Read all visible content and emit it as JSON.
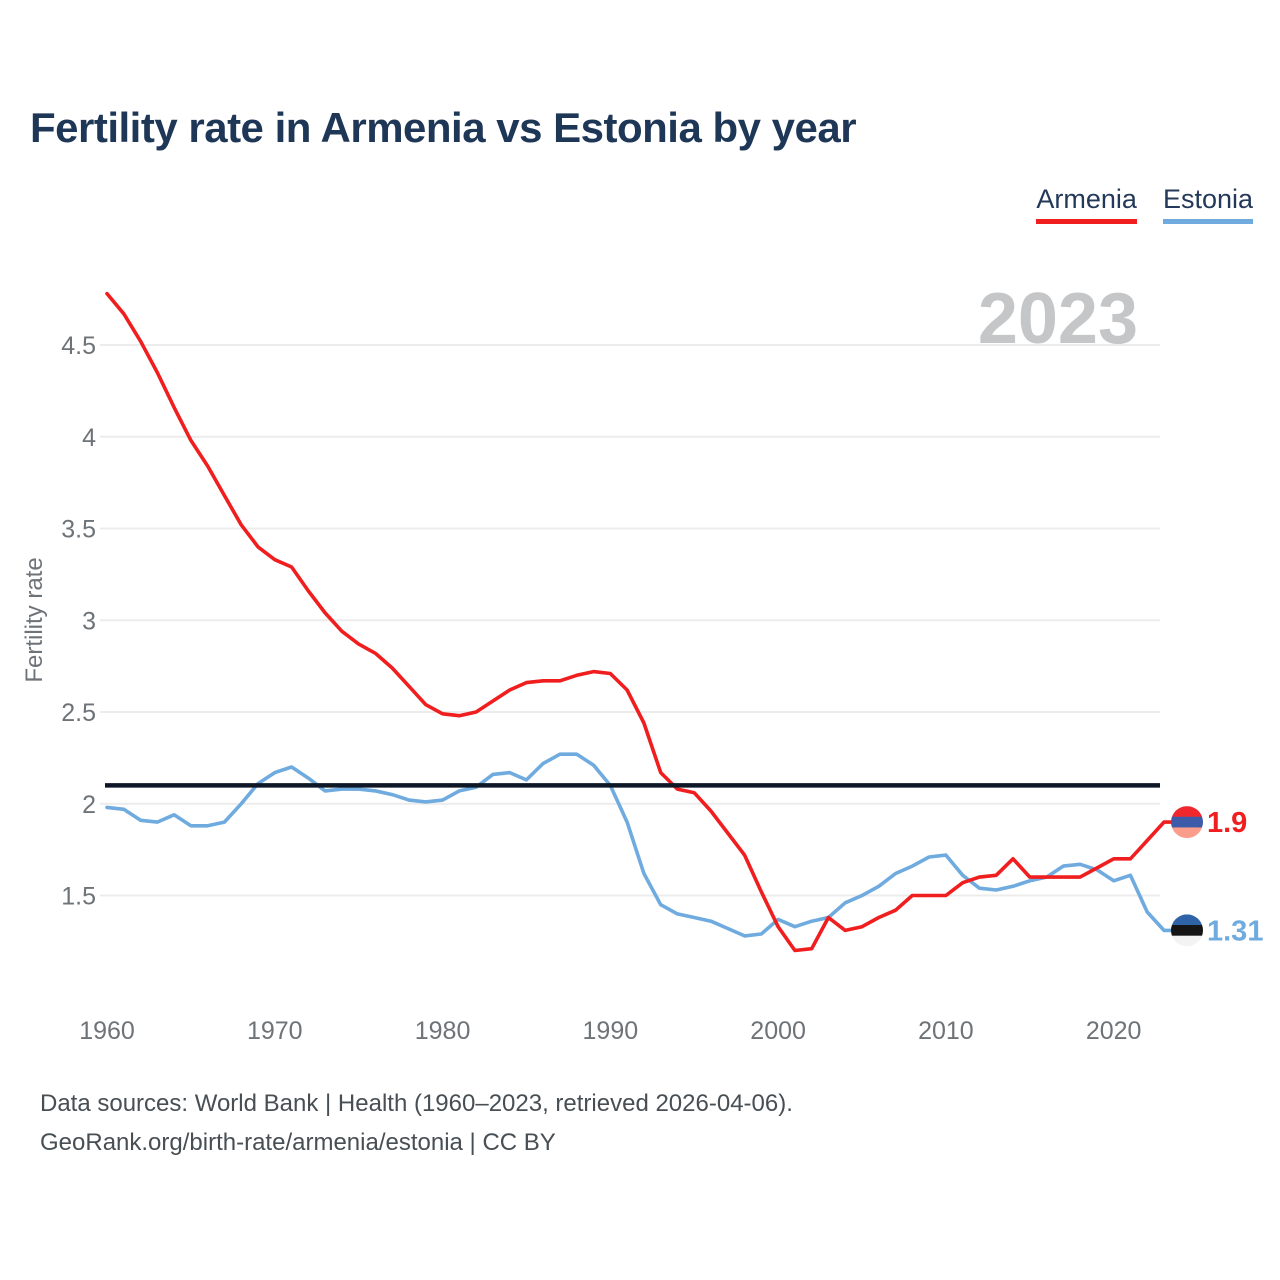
{
  "header": {
    "title": "Fertility rate in Armenia vs Estonia by year"
  },
  "legend": {
    "items": [
      {
        "id": "armenia",
        "label": "Armenia",
        "color": "#f01e1e"
      },
      {
        "id": "estonia",
        "label": "Estonia",
        "color": "#6fabdf"
      }
    ]
  },
  "watermark": "2023",
  "footer": {
    "line1": "Data sources: World Bank | Health (1960–2023, retrieved 2026-04-06).",
    "line2": "GeoRank.org/birth-rate/armenia/estonia | CC BY"
  },
  "chart_data": {
    "type": "line",
    "title": "Fertility rate in Armenia vs Estonia by year",
    "xlabel": "",
    "ylabel": "Fertility rate",
    "x": [
      1960,
      1961,
      1962,
      1963,
      1964,
      1965,
      1966,
      1967,
      1968,
      1969,
      1970,
      1971,
      1972,
      1973,
      1974,
      1975,
      1976,
      1977,
      1978,
      1979,
      1980,
      1981,
      1982,
      1983,
      1984,
      1985,
      1986,
      1987,
      1988,
      1989,
      1990,
      1991,
      1992,
      1993,
      1994,
      1995,
      1996,
      1997,
      1998,
      1999,
      2000,
      2001,
      2002,
      2003,
      2004,
      2005,
      2006,
      2007,
      2008,
      2009,
      2010,
      2011,
      2012,
      2013,
      2014,
      2015,
      2016,
      2017,
      2018,
      2019,
      2020,
      2021,
      2022,
      2023
    ],
    "x_ticks": [
      1960,
      1970,
      1980,
      1990,
      2000,
      2010,
      2020
    ],
    "y_ticks": [
      4.5,
      4,
      3.5,
      3,
      2.5,
      2,
      1.5
    ],
    "y_tick_labels": [
      "4.5",
      "4",
      "3.5",
      "3",
      "2.5",
      "2",
      "1.5"
    ],
    "ylim": [
      0.95,
      4.85
    ],
    "xlim": [
      1960,
      2023
    ],
    "grid": true,
    "legend_position": "top-right",
    "reference_line": {
      "value": 2.1,
      "color": "#0e1726"
    },
    "series": [
      {
        "name": "Armenia",
        "color": "#f01e1e",
        "end_label": "1.9",
        "end_value": 1.9,
        "flag_icon": "armenia-flag-icon",
        "flag_colors": [
          "#f0282d",
          "#3d5ba9",
          "#fb9d8a"
        ],
        "values": [
          4.78,
          4.67,
          4.52,
          4.35,
          4.16,
          3.98,
          3.84,
          3.68,
          3.52,
          3.4,
          3.33,
          3.29,
          3.16,
          3.04,
          2.94,
          2.87,
          2.82,
          2.74,
          2.64,
          2.54,
          2.49,
          2.48,
          2.5,
          2.56,
          2.62,
          2.66,
          2.67,
          2.67,
          2.7,
          2.72,
          2.71,
          2.62,
          2.44,
          2.17,
          2.08,
          2.06,
          1.96,
          1.84,
          1.72,
          1.52,
          1.33,
          1.2,
          1.21,
          1.38,
          1.31,
          1.33,
          1.38,
          1.42,
          1.5,
          1.5,
          1.5,
          1.57,
          1.6,
          1.61,
          1.7,
          1.6,
          1.6,
          1.6,
          1.6,
          1.65,
          1.7,
          1.7,
          1.8,
          1.9
        ]
      },
      {
        "name": "Estonia",
        "color": "#6fabdf",
        "end_label": "1.31",
        "end_value": 1.31,
        "flag_icon": "estonia-flag-icon",
        "flag_colors": [
          "#2f63a7",
          "#151515",
          "#f3f3f3"
        ],
        "values": [
          1.98,
          1.97,
          1.91,
          1.9,
          1.94,
          1.88,
          1.88,
          1.9,
          2.0,
          2.11,
          2.17,
          2.2,
          2.14,
          2.07,
          2.08,
          2.08,
          2.07,
          2.05,
          2.02,
          2.01,
          2.02,
          2.07,
          2.09,
          2.16,
          2.17,
          2.13,
          2.22,
          2.27,
          2.27,
          2.21,
          2.1,
          1.9,
          1.62,
          1.45,
          1.4,
          1.38,
          1.36,
          1.32,
          1.28,
          1.29,
          1.37,
          1.33,
          1.36,
          1.38,
          1.46,
          1.5,
          1.55,
          1.62,
          1.66,
          1.71,
          1.72,
          1.61,
          1.54,
          1.53,
          1.55,
          1.58,
          1.6,
          1.66,
          1.67,
          1.64,
          1.58,
          1.61,
          1.41,
          1.31
        ]
      }
    ]
  }
}
